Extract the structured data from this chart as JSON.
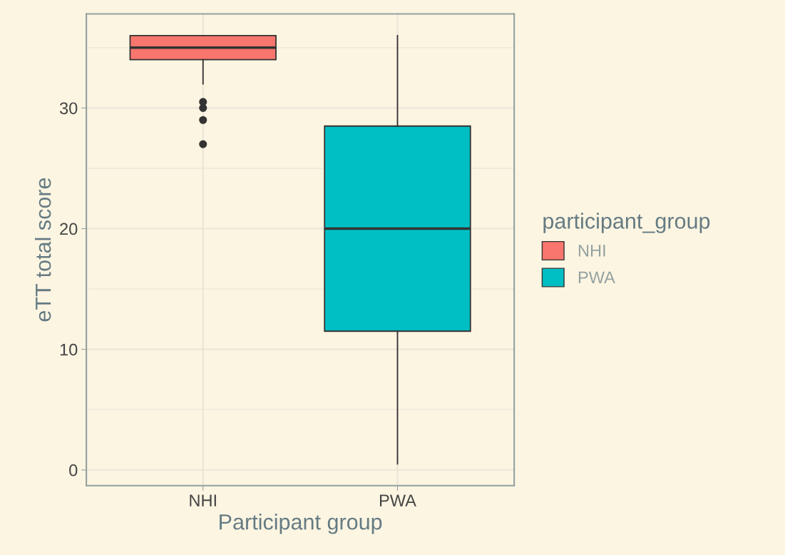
{
  "chart_data": {
    "type": "box",
    "xlabel": "Participant group",
    "ylabel": "eTT total score",
    "legend_title": "participant_group",
    "categories": [
      "NHI",
      "PWA"
    ],
    "series": [
      {
        "name": "NHI",
        "color": "#f8766d",
        "boxes": [
          {
            "low": 32,
            "q1": 34,
            "median": 35,
            "q3": 36,
            "high": 36,
            "outliers": [
              30.5,
              30,
              29,
              27
            ]
          },
          null
        ]
      },
      {
        "name": "PWA",
        "color": "#00bfc4",
        "boxes": [
          null,
          {
            "low": 0.5,
            "q1": 11.5,
            "median": 20,
            "q3": 28.5,
            "high": 36
          }
        ]
      }
    ],
    "ylim": [
      -1.3,
      37.8
    ],
    "yticks": [
      0,
      10,
      20,
      30
    ],
    "grid": true,
    "legend": "right"
  }
}
